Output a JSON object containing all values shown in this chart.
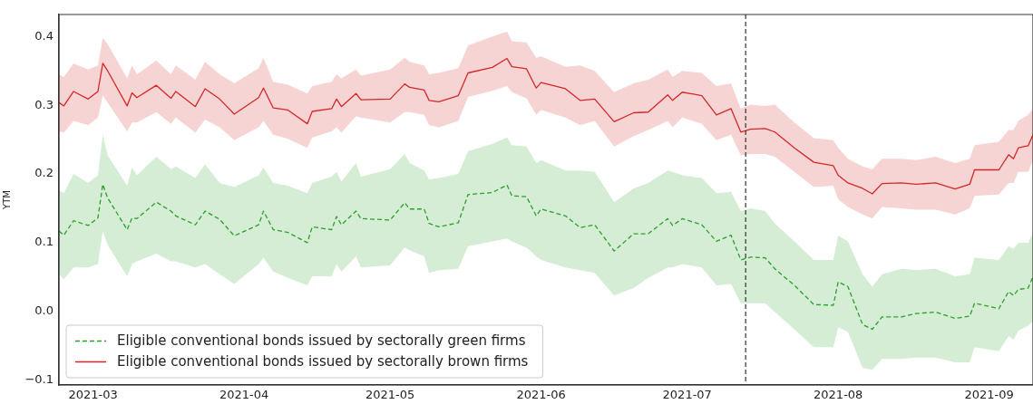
{
  "chart_data": {
    "type": "line",
    "ylabel": "YTM",
    "x": [
      "2021-02-22",
      "2021-02-23",
      "2021-02-25",
      "2021-02-28",
      "2021-03-02",
      "2021-03-03",
      "2021-03-04",
      "2021-03-08",
      "2021-03-09",
      "2021-03-10",
      "2021-03-14",
      "2021-03-17",
      "2021-03-18",
      "2021-03-22",
      "2021-03-24",
      "2021-03-27",
      "2021-03-30",
      "2021-04-04",
      "2021-04-05",
      "2021-04-07",
      "2021-04-10",
      "2021-04-14",
      "2021-04-15",
      "2021-04-19",
      "2021-04-20",
      "2021-04-21",
      "2021-04-24",
      "2021-04-25",
      "2021-05-01",
      "2021-05-04",
      "2021-05-05",
      "2021-05-08",
      "2021-05-09",
      "2021-05-11",
      "2021-05-15",
      "2021-05-17",
      "2021-05-22",
      "2021-05-25",
      "2021-05-26",
      "2021-05-29",
      "2021-05-31",
      "2021-06-01",
      "2021-06-06",
      "2021-06-09",
      "2021-06-12",
      "2021-06-16",
      "2021-06-20",
      "2021-06-23",
      "2021-06-27",
      "2021-06-28",
      "2021-06-30",
      "2021-07-04",
      "2021-07-07",
      "2021-07-10",
      "2021-07-12",
      "2021-07-14",
      "2021-07-17",
      "2021-07-19",
      "2021-07-23",
      "2021-07-27",
      "2021-07-31",
      "2021-08-01",
      "2021-08-03",
      "2021-08-06",
      "2021-08-08",
      "2021-08-10",
      "2021-08-14",
      "2021-08-17",
      "2021-08-21",
      "2021-08-25",
      "2021-08-28",
      "2021-08-29",
      "2021-09-03",
      "2021-09-05",
      "2021-09-06",
      "2021-09-07",
      "2021-09-09",
      "2021-09-10"
    ],
    "series": [
      {
        "name": "Eligible conventional bonds issued by sectorally green firms",
        "color": "#2ca02c",
        "line_style": "dashed",
        "values": [
          0.117,
          0.111,
          0.132,
          0.125,
          0.136,
          0.185,
          0.165,
          0.119,
          0.136,
          0.135,
          0.159,
          0.146,
          0.139,
          0.126,
          0.146,
          0.134,
          0.11,
          0.126,
          0.146,
          0.119,
          0.115,
          0.1,
          0.123,
          0.119,
          0.138,
          0.126,
          0.146,
          0.135,
          0.133,
          0.158,
          0.149,
          0.149,
          0.128,
          0.123,
          0.129,
          0.17,
          0.173,
          0.184,
          0.168,
          0.167,
          0.139,
          0.149,
          0.139,
          0.122,
          0.126,
          0.088,
          0.113,
          0.113,
          0.135,
          0.125,
          0.135,
          0.126,
          0.102,
          0.111,
          0.075,
          0.079,
          0.078,
          0.062,
          0.038,
          0.01,
          0.009,
          0.043,
          0.036,
          -0.019,
          -0.026,
          -0.008,
          -0.008,
          -0.003,
          -0.001,
          -0.01,
          -0.007,
          0.012,
          0.004,
          0.029,
          0.023,
          0.032,
          0.034,
          0.051
        ],
        "lower": [
          0.054,
          0.047,
          0.064,
          0.064,
          0.069,
          0.117,
          0.097,
          0.051,
          0.069,
          0.073,
          0.084,
          0.073,
          0.073,
          0.064,
          0.069,
          0.054,
          0.04,
          0.069,
          0.078,
          0.058,
          0.049,
          0.038,
          0.051,
          0.051,
          0.069,
          0.058,
          0.08,
          0.064,
          0.067,
          0.093,
          0.089,
          0.08,
          0.056,
          0.06,
          0.062,
          0.095,
          0.102,
          0.106,
          0.102,
          0.093,
          0.08,
          0.075,
          0.064,
          0.06,
          0.056,
          0.023,
          0.034,
          0.049,
          0.064,
          0.064,
          0.069,
          0.064,
          0.038,
          0.04,
          0.012,
          0.012,
          0.012,
          -0.001,
          -0.026,
          -0.052,
          -0.052,
          -0.023,
          -0.03,
          -0.082,
          -0.085,
          -0.069,
          -0.069,
          -0.067,
          -0.067,
          -0.074,
          -0.074,
          -0.052,
          -0.058,
          -0.036,
          -0.041,
          -0.028,
          -0.021,
          -0.014
        ],
        "upper": [
          0.176,
          0.172,
          0.2,
          0.187,
          0.198,
          0.257,
          0.227,
          0.183,
          0.209,
          0.198,
          0.225,
          0.207,
          0.211,
          0.194,
          0.214,
          0.187,
          0.181,
          0.198,
          0.209,
          0.187,
          0.183,
          0.172,
          0.187,
          0.196,
          0.203,
          0.189,
          0.216,
          0.196,
          0.207,
          0.229,
          0.216,
          0.205,
          0.192,
          0.194,
          0.2,
          0.233,
          0.244,
          0.253,
          0.242,
          0.24,
          0.216,
          0.22,
          0.205,
          0.205,
          0.203,
          0.159,
          0.179,
          0.187,
          0.205,
          0.203,
          0.198,
          0.194,
          0.172,
          0.174,
          0.146,
          0.15,
          0.146,
          0.128,
          0.102,
          0.075,
          0.075,
          0.11,
          0.102,
          0.054,
          0.036,
          0.054,
          0.062,
          0.06,
          0.062,
          0.051,
          0.054,
          0.078,
          0.075,
          0.095,
          0.091,
          0.1,
          0.1,
          0.115
        ]
      },
      {
        "name": "Eligible conventional bonds issued by sectorally brown firms",
        "color": "#d62728",
        "line_style": "solid",
        "values": [
          0.304,
          0.299,
          0.32,
          0.309,
          0.32,
          0.361,
          0.35,
          0.299,
          0.318,
          0.311,
          0.329,
          0.31,
          0.32,
          0.298,
          0.324,
          0.309,
          0.287,
          0.311,
          0.325,
          0.296,
          0.293,
          0.273,
          0.291,
          0.295,
          0.309,
          0.298,
          0.317,
          0.308,
          0.309,
          0.331,
          0.326,
          0.322,
          0.307,
          0.305,
          0.314,
          0.347,
          0.355,
          0.368,
          0.356,
          0.353,
          0.325,
          0.333,
          0.324,
          0.307,
          0.309,
          0.276,
          0.289,
          0.29,
          0.315,
          0.307,
          0.319,
          0.314,
          0.286,
          0.295,
          0.261,
          0.265,
          0.266,
          0.261,
          0.238,
          0.217,
          0.212,
          0.198,
          0.187,
          0.179,
          0.171,
          0.186,
          0.187,
          0.185,
          0.187,
          0.178,
          0.185,
          0.206,
          0.206,
          0.228,
          0.222,
          0.238,
          0.241,
          0.257
        ],
        "lower": [
          0.262,
          0.26,
          0.277,
          0.271,
          0.282,
          0.314,
          0.304,
          0.262,
          0.275,
          0.275,
          0.29,
          0.273,
          0.282,
          0.26,
          0.279,
          0.268,
          0.249,
          0.268,
          0.277,
          0.257,
          0.251,
          0.238,
          0.253,
          0.262,
          0.268,
          0.26,
          0.284,
          0.282,
          0.275,
          0.29,
          0.29,
          0.286,
          0.271,
          0.268,
          0.277,
          0.312,
          0.321,
          0.328,
          0.319,
          0.31,
          0.286,
          0.293,
          0.282,
          0.271,
          0.277,
          0.24,
          0.255,
          0.264,
          0.277,
          0.268,
          0.282,
          0.273,
          0.249,
          0.257,
          0.227,
          0.229,
          0.229,
          0.225,
          0.203,
          0.181,
          0.183,
          0.163,
          0.152,
          0.141,
          0.135,
          0.152,
          0.15,
          0.148,
          0.148,
          0.141,
          0.15,
          0.168,
          0.17,
          0.187,
          0.187,
          0.203,
          0.203,
          0.22
        ],
        "upper": [
          0.345,
          0.341,
          0.361,
          0.352,
          0.358,
          0.398,
          0.389,
          0.339,
          0.358,
          0.345,
          0.365,
          0.345,
          0.358,
          0.337,
          0.363,
          0.345,
          0.332,
          0.354,
          0.369,
          0.334,
          0.33,
          0.317,
          0.328,
          0.334,
          0.345,
          0.339,
          0.352,
          0.343,
          0.352,
          0.369,
          0.363,
          0.358,
          0.345,
          0.347,
          0.354,
          0.387,
          0.4,
          0.407,
          0.393,
          0.391,
          0.369,
          0.371,
          0.356,
          0.358,
          0.35,
          0.319,
          0.332,
          0.337,
          0.352,
          0.341,
          0.35,
          0.347,
          0.328,
          0.332,
          0.295,
          0.301,
          0.299,
          0.301,
          0.275,
          0.252,
          0.249,
          0.238,
          0.222,
          0.211,
          0.207,
          0.222,
          0.222,
          0.22,
          0.225,
          0.216,
          0.222,
          0.242,
          0.247,
          0.264,
          0.264,
          0.277,
          0.286,
          0.295
        ]
      }
    ],
    "xlim": [
      "2021-02-22",
      "2021-09-10"
    ],
    "xticks": [
      {
        "value": "2021-03-01",
        "label": "2021-03"
      },
      {
        "value": "2021-04-01",
        "label": "2021-04"
      },
      {
        "value": "2021-05-01",
        "label": "2021-05"
      },
      {
        "value": "2021-06-01",
        "label": "2021-06"
      },
      {
        "value": "2021-07-01",
        "label": "2021-07"
      },
      {
        "value": "2021-08-01",
        "label": "2021-08"
      },
      {
        "value": "2021-09-01",
        "label": "2021-09"
      }
    ],
    "ylim": [
      -0.107,
      0.432
    ],
    "yticks": [
      {
        "value": -0.1,
        "label": "−0.1"
      },
      {
        "value": 0,
        "label": "0.0"
      },
      0.1,
      0.2,
      0.3,
      0.4
    ],
    "ref_lines": [
      {
        "axis": "x",
        "value": "2021-07-13",
        "color": "#333333",
        "line_style": "dashed"
      }
    ],
    "grid": false,
    "legend": "bottom left"
  }
}
